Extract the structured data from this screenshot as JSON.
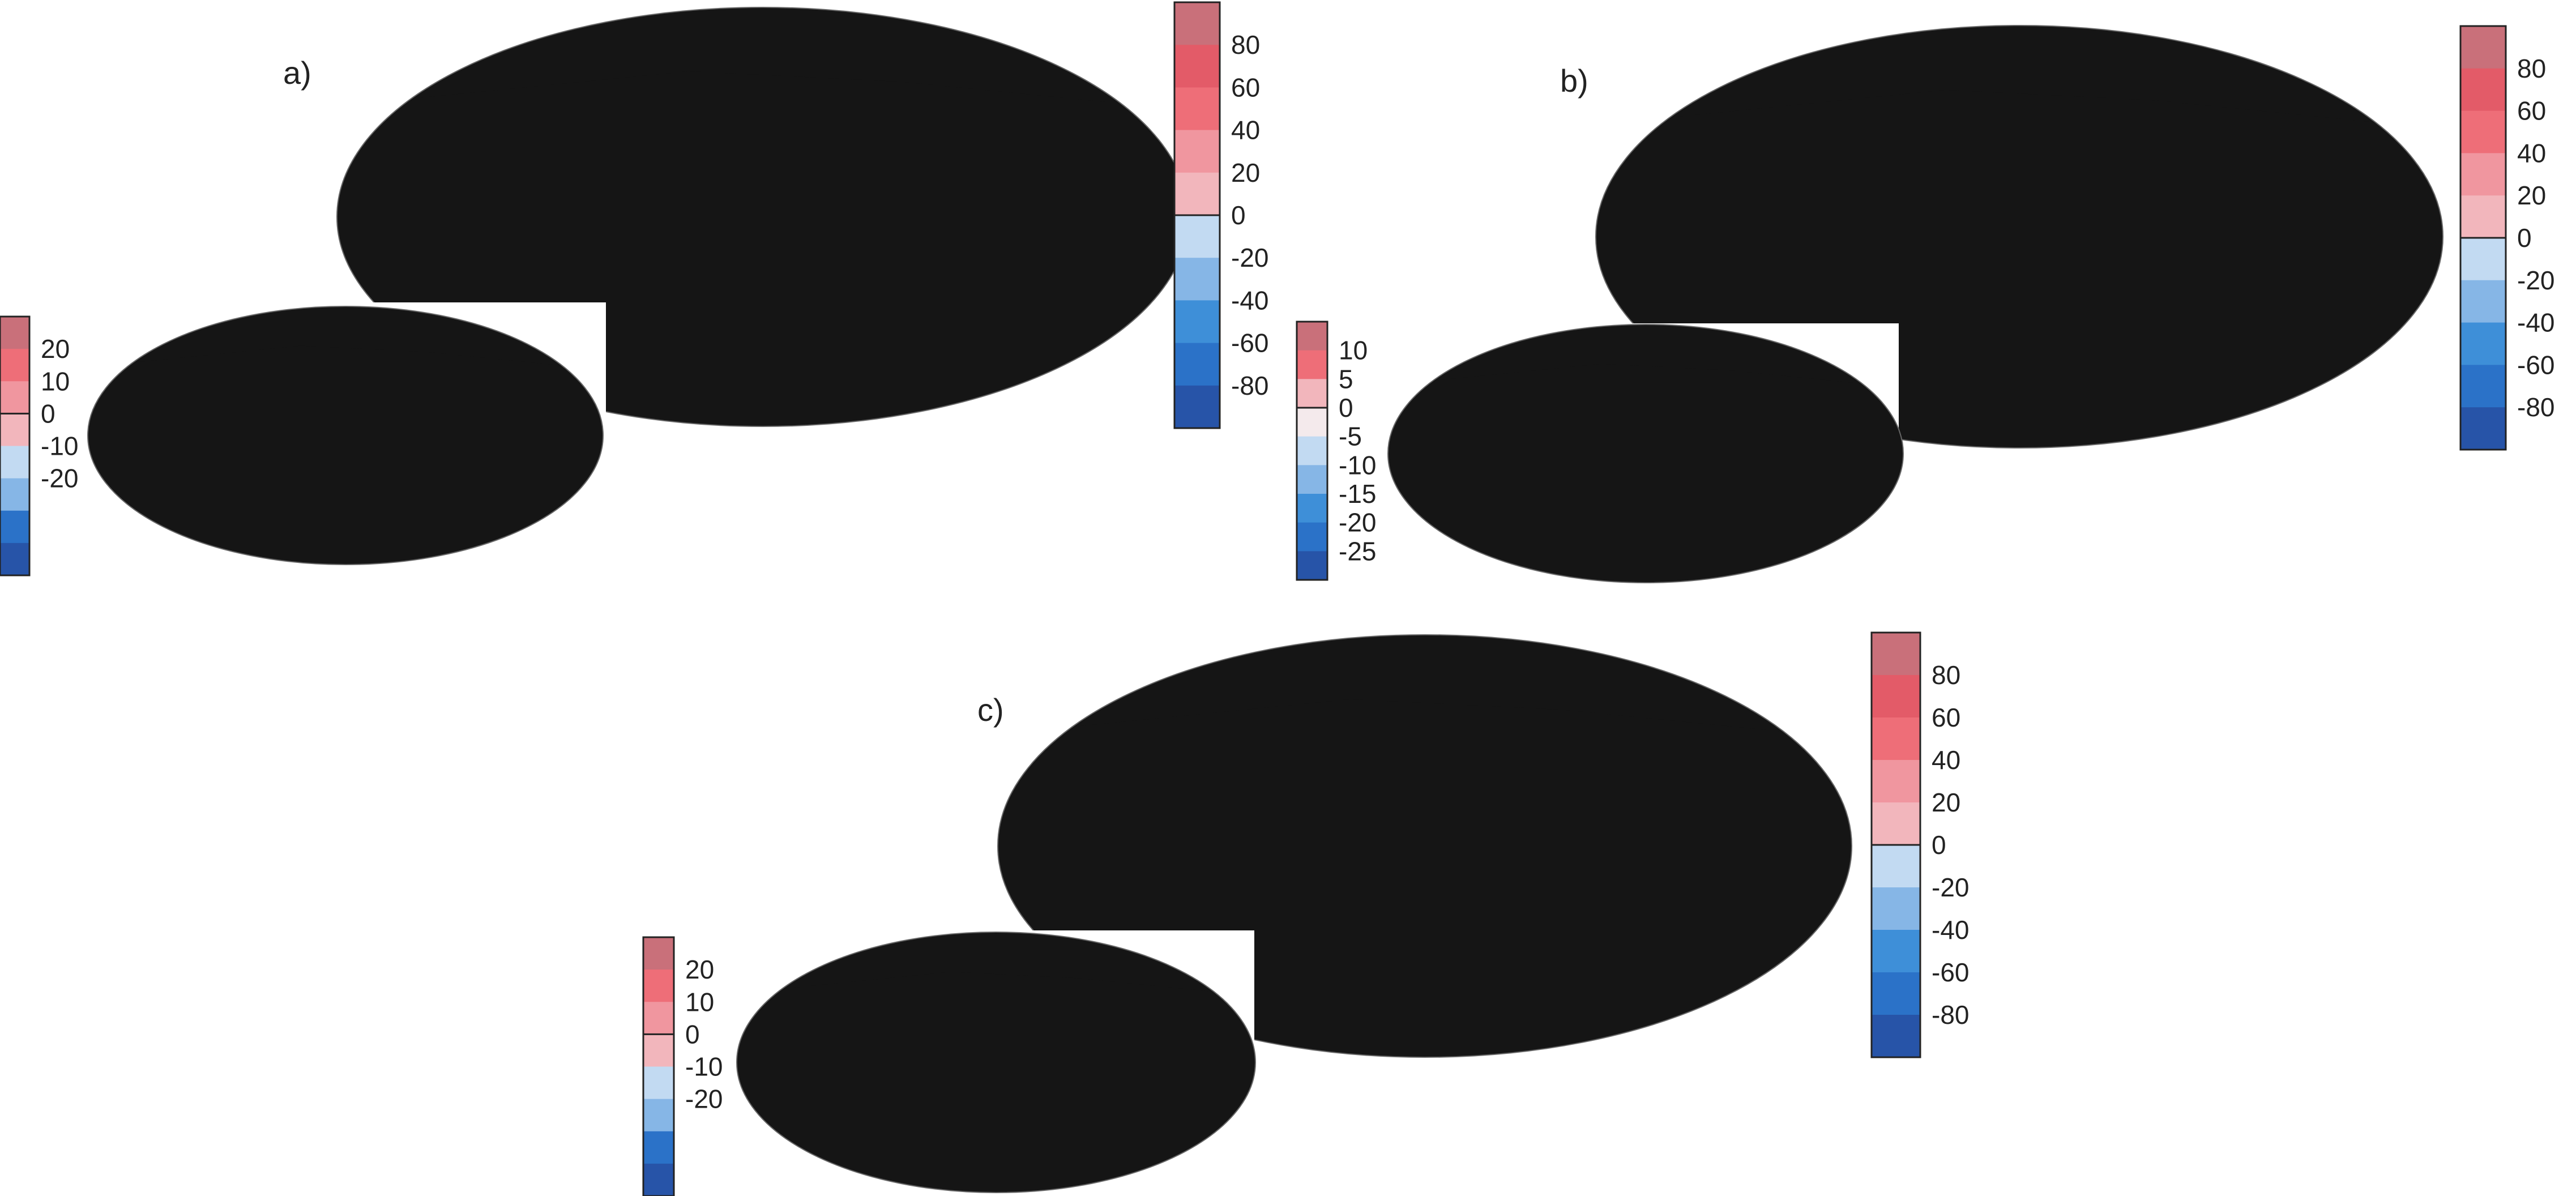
{
  "palette": {
    "neg": [
      "#c2daf2",
      "#86b6e6",
      "#3e8fd8",
      "#2b72c8",
      "#2754a8"
    ],
    "pos": [
      "#f2b6bc",
      "#f0969f",
      "#ee6e78",
      "#e35b68",
      "#c9707a"
    ],
    "neutral": "#f4eaec",
    "map_border": "#666666",
    "coast": "#151515",
    "contour": "#111111"
  },
  "panels": [
    {
      "label": "a)",
      "main_map": {
        "bands": [
          "p4",
          "p3",
          "p3",
          "p2",
          "p2",
          "p1",
          "p1",
          "n1",
          "n1",
          "n2",
          "n3",
          "n3",
          "n4",
          "n4",
          "n4",
          "n5"
        ],
        "contour_latitudes": [
          0
        ]
      },
      "main_colorbar": {
        "colors": [
          "n5",
          "n4",
          "n3",
          "n2",
          "n1",
          "p1",
          "p2",
          "p3",
          "p4",
          "p5"
        ],
        "ticks": [
          "80",
          "60",
          "40",
          "20",
          "0",
          "-20",
          "-40",
          "-60",
          "-80"
        ]
      },
      "inset_map": {
        "bands": [
          "n5",
          "n4",
          "n3",
          "n3",
          "n2",
          "n1",
          "n1",
          "p1",
          "p1",
          "p2",
          "p3",
          "p3",
          "p4",
          "p4",
          "p5",
          "p5"
        ],
        "contour_latitudes": [
          0
        ]
      },
      "inset_colorbar": {
        "colors": [
          "n5",
          "n4",
          "n2",
          "n1",
          "p1",
          "p2",
          "p3",
          "p5"
        ],
        "ticks": [
          "20",
          "10",
          "0",
          "-10",
          "-20"
        ]
      }
    },
    {
      "label": "b)",
      "main_map": {
        "bands": [
          "p4",
          "p3",
          "p2",
          "p1",
          "n1",
          "n2",
          "n3",
          "n4",
          "n5",
          "n5",
          "n4",
          "n3",
          "n2",
          "n1",
          "p1",
          "p2",
          "p3",
          "p4"
        ],
        "contour_latitudes": [
          45,
          -45
        ]
      },
      "main_colorbar": {
        "colors": [
          "n5",
          "n4",
          "n3",
          "n2",
          "n1",
          "p1",
          "p2",
          "p3",
          "p4",
          "p5"
        ],
        "ticks": [
          "80",
          "60",
          "40",
          "20",
          "0",
          "-20",
          "-40",
          "-60",
          "-80"
        ]
      },
      "inset_map": {
        "bands": [
          "n4",
          "n2",
          "neutral",
          "p2",
          "p3",
          "p4",
          "p5",
          "p5",
          "p5",
          "p5",
          "p4",
          "p3",
          "p2",
          "neutral",
          "n2",
          "n4"
        ],
        "contour_latitudes": [
          45,
          -45
        ]
      },
      "inset_colorbar": {
        "colors": [
          "n5",
          "n4",
          "n3",
          "n2",
          "n1",
          "neutral",
          "p1",
          "p3",
          "p5"
        ],
        "ticks": [
          "10",
          "5",
          "0",
          "-5",
          "-10",
          "-15",
          "-20",
          "-25"
        ]
      }
    },
    {
      "label": "c)",
      "main_map": {
        "bands": [
          "p3",
          "p2",
          "p1",
          "n1",
          "n2",
          "n3",
          "n4",
          "n5",
          "n4",
          "n3",
          "n2",
          "n1",
          "p1",
          "p2",
          "p3",
          "p4",
          "p5",
          "p4",
          "p3",
          "p2",
          "p1",
          "n1",
          "n2",
          "n3"
        ],
        "contour_latitudes": [
          60,
          0,
          -60
        ]
      },
      "main_colorbar": {
        "colors": [
          "n5",
          "n4",
          "n3",
          "n2",
          "n1",
          "p1",
          "p2",
          "p3",
          "p4",
          "p5"
        ],
        "ticks": [
          "80",
          "60",
          "40",
          "20",
          "0",
          "-20",
          "-40",
          "-60",
          "-80"
        ]
      },
      "inset_map": {
        "bands": [
          "n4",
          "n3",
          "p1",
          "p2",
          "p3",
          "p2",
          "p1",
          "n1",
          "n1",
          "n2",
          "n3",
          "n4",
          "n3",
          "n2",
          "p1",
          "p3"
        ],
        "contour_latitudes": [
          60,
          0,
          -60
        ]
      },
      "inset_colorbar": {
        "colors": [
          "n5",
          "n4",
          "n2",
          "n1",
          "p1",
          "p2",
          "p3",
          "p5"
        ],
        "ticks": [
          "20",
          "10",
          "0",
          "-10",
          "-20"
        ]
      }
    }
  ]
}
